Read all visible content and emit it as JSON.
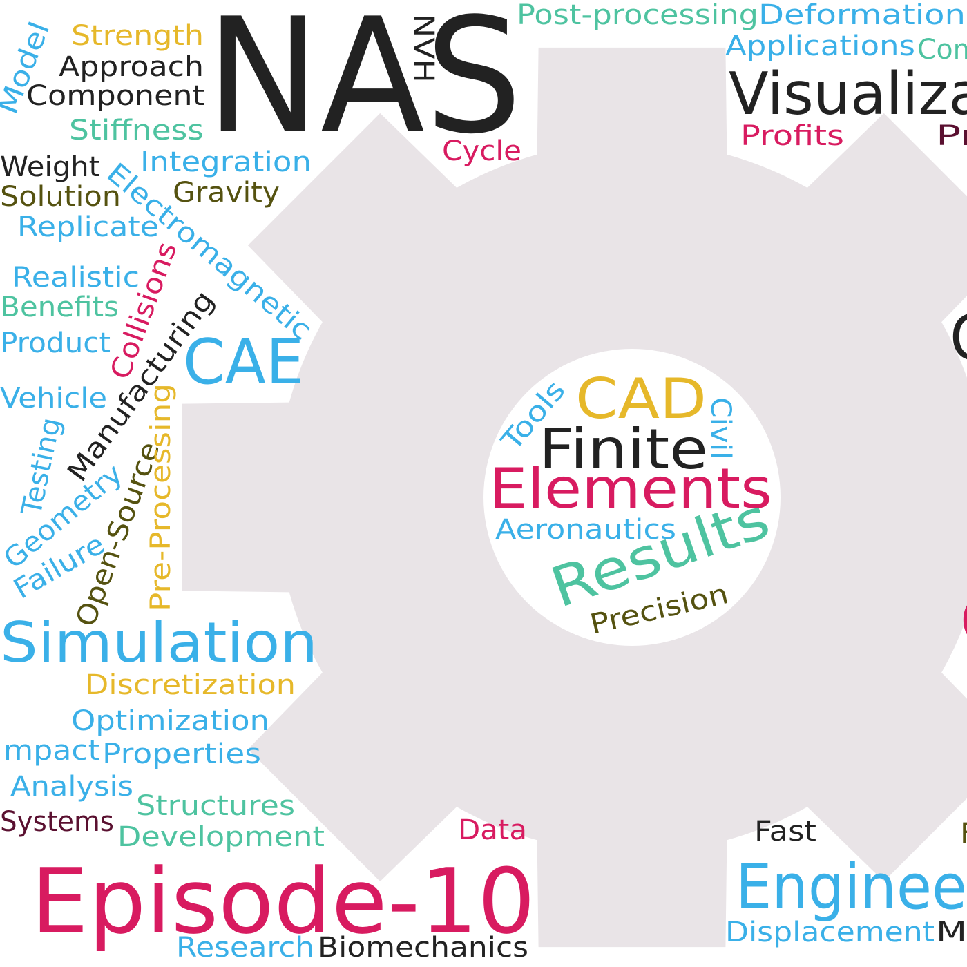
{
  "words": [
    "NAS",
    "NVH",
    "Strength",
    "Model",
    "Approach",
    "Component",
    "Stiffness",
    "Cycle",
    "Post-processing",
    "Deformation",
    "Applications",
    "Com",
    "Visualiza",
    "Profits",
    "Pr",
    "Weight",
    "Integration",
    "Electromagnetic",
    "Solution",
    "Gravity",
    "Replicate",
    "Realistic",
    "Collisions",
    "Benefits",
    "Manufacturing",
    "Product",
    "CAE",
    "Vehicle",
    "Testing",
    "Geometry",
    "Failure",
    "Open-Source",
    "Pre-Processing",
    "Simulation",
    "Discretization",
    "Optimization",
    "mpact",
    "Properties",
    "Analysis",
    "Structures",
    "Systems",
    "Development",
    "Data",
    "Fast",
    "F",
    "Episode-10",
    "Enginee",
    "Displacement",
    "M",
    "Research",
    "Biomechanics",
    "C",
    "C",
    "CAD",
    "Tools",
    "Civil",
    "Finite",
    "Elements",
    "Aeronautics",
    "Results",
    "Precision"
  ]
}
